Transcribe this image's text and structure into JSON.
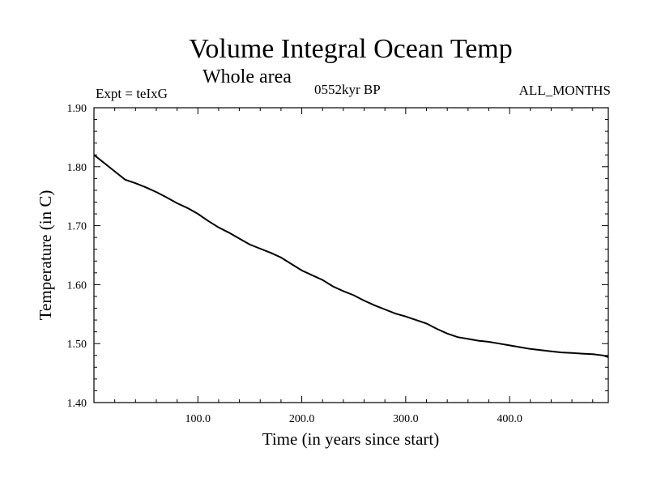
{
  "header": {
    "title": "Volume Integral Ocean Temp",
    "subtitle": "Whole area",
    "experiment": "Expt = teIxG",
    "date": "0552kyr BP",
    "months": "ALL_MONTHS"
  },
  "chart_data": {
    "type": "line",
    "title": "Volume Integral Ocean Temp",
    "subtitle": "Whole area",
    "xlabel": "Time (in years since start)",
    "ylabel": "Temperature (in C)",
    "xlim": [
      0,
      495
    ],
    "ylim": [
      1.4,
      1.9
    ],
    "x_ticks": [
      100,
      200,
      300,
      400
    ],
    "x_tick_labels": [
      "100.0",
      "200.0",
      "300.0",
      "400.0"
    ],
    "y_ticks": [
      1.4,
      1.5,
      1.6,
      1.7,
      1.8,
      1.9
    ],
    "y_tick_labels": [
      "1.40",
      "1.50",
      "1.60",
      "1.70",
      "1.80",
      "1.90"
    ],
    "grid": false,
    "series": [
      {
        "color": "#000000",
        "x": [
          0,
          10,
          20,
          30,
          40,
          50,
          60,
          70,
          80,
          90,
          100,
          110,
          120,
          130,
          140,
          150,
          160,
          170,
          180,
          190,
          200,
          210,
          220,
          230,
          240,
          250,
          260,
          270,
          280,
          290,
          300,
          310,
          320,
          330,
          340,
          350,
          360,
          370,
          380,
          390,
          400,
          410,
          420,
          430,
          440,
          450,
          460,
          470,
          480,
          490,
          495
        ],
        "values": [
          1.82,
          1.806,
          1.792,
          1.778,
          1.772,
          1.765,
          1.757,
          1.748,
          1.738,
          1.73,
          1.72,
          1.708,
          1.697,
          1.688,
          1.678,
          1.668,
          1.661,
          1.654,
          1.646,
          1.635,
          1.624,
          1.616,
          1.608,
          1.597,
          1.589,
          1.582,
          1.573,
          1.565,
          1.558,
          1.551,
          1.546,
          1.54,
          1.534,
          1.525,
          1.517,
          1.511,
          1.508,
          1.505,
          1.503,
          1.5,
          1.497,
          1.494,
          1.491,
          1.489,
          1.487,
          1.485,
          1.484,
          1.483,
          1.482,
          1.48,
          1.477
        ]
      }
    ]
  }
}
